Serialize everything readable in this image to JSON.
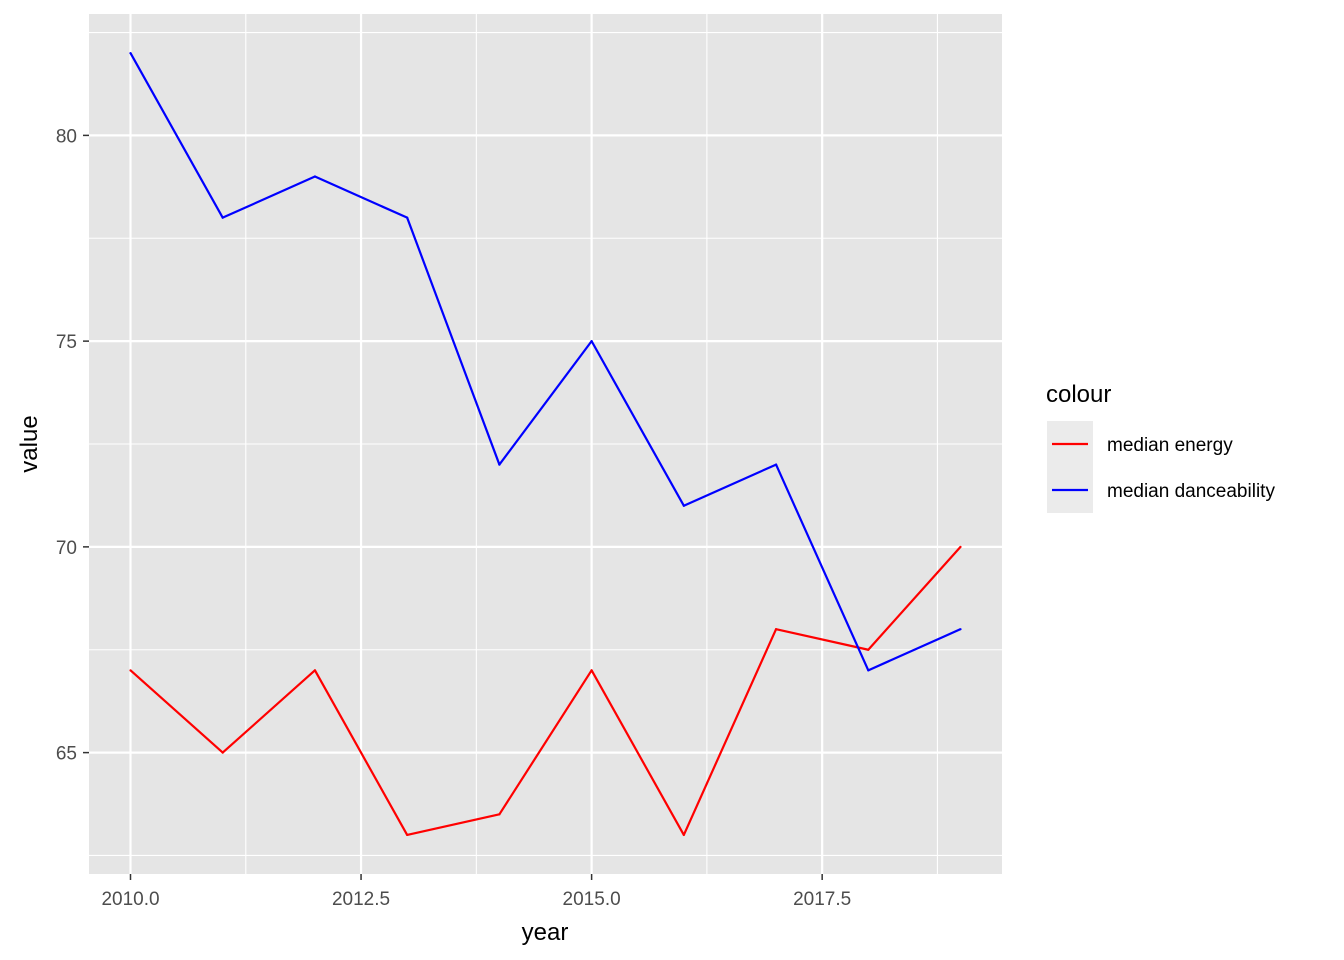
{
  "chart_data": {
    "type": "line",
    "title": "",
    "xlabel": "year",
    "ylabel": "value",
    "xlim": [
      2009.55,
      2019.45
    ],
    "ylim": [
      62.05,
      82.95
    ],
    "x_ticks": [
      2010.0,
      2012.5,
      2015.0,
      2017.5
    ],
    "x_tick_labels": [
      "2010.0",
      "2012.5",
      "2015.0",
      "2017.5"
    ],
    "y_ticks": [
      65,
      70,
      75,
      80
    ],
    "y_tick_labels": [
      "65",
      "70",
      "75",
      "80"
    ],
    "grid": true,
    "background": "#e5e5e5",
    "legend": {
      "title": "colour",
      "position": "right"
    },
    "x": [
      2010,
      2011,
      2012,
      2013,
      2014,
      2015,
      2016,
      2017,
      2018,
      2019
    ],
    "series": [
      {
        "name": "median energy",
        "color": "#ff0000",
        "values": [
          67,
          65,
          67,
          63,
          63.5,
          67,
          63,
          68,
          67.5,
          70
        ]
      },
      {
        "name": "median danceability",
        "color": "#0000ff",
        "values": [
          82,
          78,
          79,
          78,
          72,
          75,
          71,
          72,
          67,
          68
        ]
      }
    ]
  }
}
